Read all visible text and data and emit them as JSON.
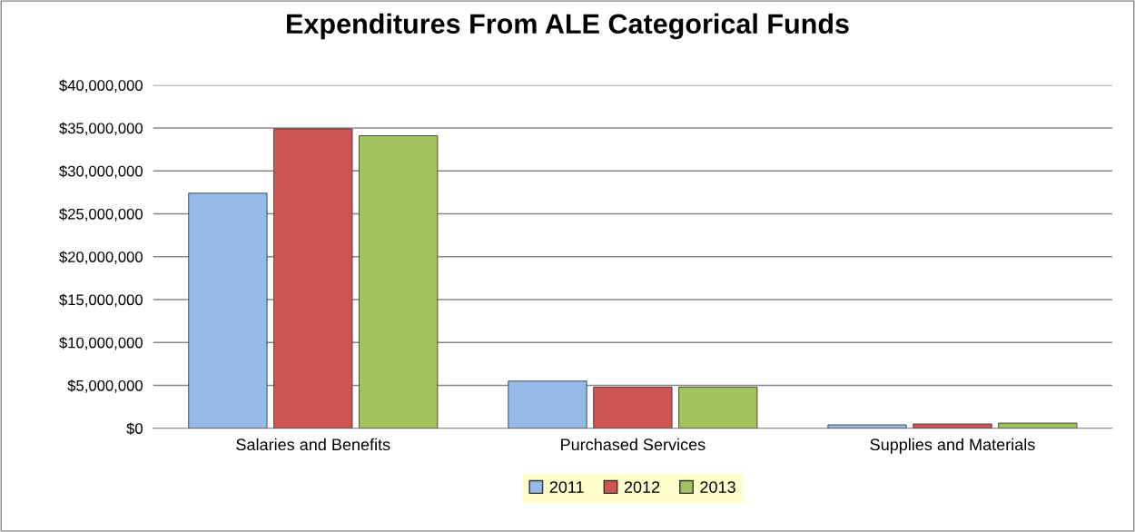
{
  "chart_data": {
    "type": "bar",
    "title": "Expenditures From ALE Categorical Funds",
    "categories": [
      "Salaries and Benefits",
      "Purchased Services",
      "Supplies and Materials"
    ],
    "series": [
      {
        "name": "2011",
        "color": "#95b9e8",
        "values": [
          27400000,
          5500000,
          400000
        ]
      },
      {
        "name": "2012",
        "color": "#cf5555",
        "values": [
          34900000,
          4800000,
          500000
        ]
      },
      {
        "name": "2013",
        "color": "#a2c35e",
        "values": [
          34100000,
          4800000,
          600000
        ]
      }
    ],
    "ylim": [
      0,
      40000000
    ],
    "yticks": [
      {
        "value": 0,
        "label": "$0"
      },
      {
        "value": 5000000,
        "label": "$5,000,000"
      },
      {
        "value": 10000000,
        "label": "$10,000,000"
      },
      {
        "value": 15000000,
        "label": "$15,000,000"
      },
      {
        "value": 20000000,
        "label": "$20,000,000"
      },
      {
        "value": 25000000,
        "label": "$25,000,000"
      },
      {
        "value": 30000000,
        "label": "$30,000,000"
      },
      {
        "value": 35000000,
        "label": "$35,000,000"
      },
      {
        "value": 40000000,
        "label": "$40,000,000"
      }
    ],
    "grid": "y",
    "legend": "bottom"
  }
}
